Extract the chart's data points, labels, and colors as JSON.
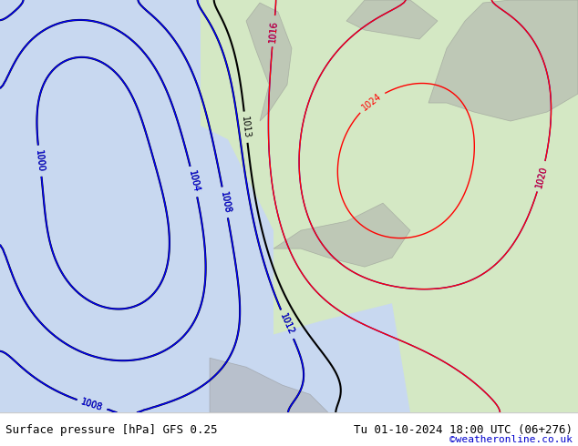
{
  "title_left": "Surface pressure [hPa] GFS 0.25",
  "title_right": "Tu 01-10-2024 18:00 UTC (06+276)",
  "copyright": "©weatheronline.co.uk",
  "bg_color": "#e8e8f0",
  "map_bg": "#d4e8c4",
  "sea_color": "#c8d8f0",
  "land_color": "#d4e8c4",
  "footer_bg": "#ffffff",
  "footer_text_color": "#000000",
  "copyright_color": "#0000cc",
  "contour_blue": "#0000ff",
  "contour_red": "#ff0000",
  "contour_black": "#000000",
  "figsize": [
    6.34,
    4.9
  ],
  "dpi": 100
}
